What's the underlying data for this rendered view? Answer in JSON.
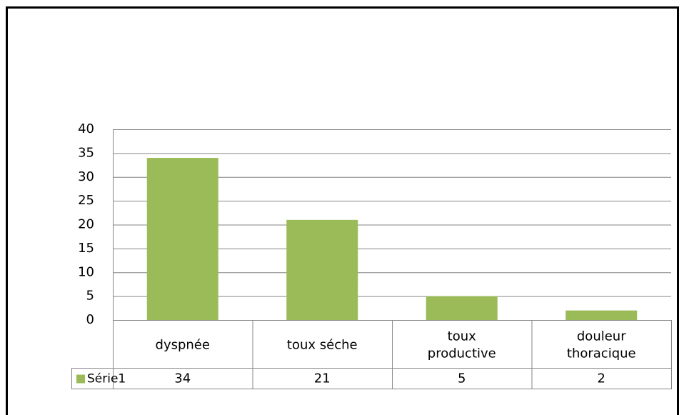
{
  "chart_data": {
    "type": "bar",
    "categories": [
      "dyspnée",
      "toux séche",
      "toux\nproductive",
      "douleur\nthoracique"
    ],
    "series": [
      {
        "name": "Série1",
        "color": "#9bbb59",
        "values": [
          34,
          21,
          5,
          2
        ]
      }
    ],
    "ylim": [
      0,
      40
    ],
    "yticks": [
      0,
      5,
      10,
      15,
      20,
      25,
      30,
      35,
      40
    ],
    "grid": true,
    "legend": "data-table"
  }
}
